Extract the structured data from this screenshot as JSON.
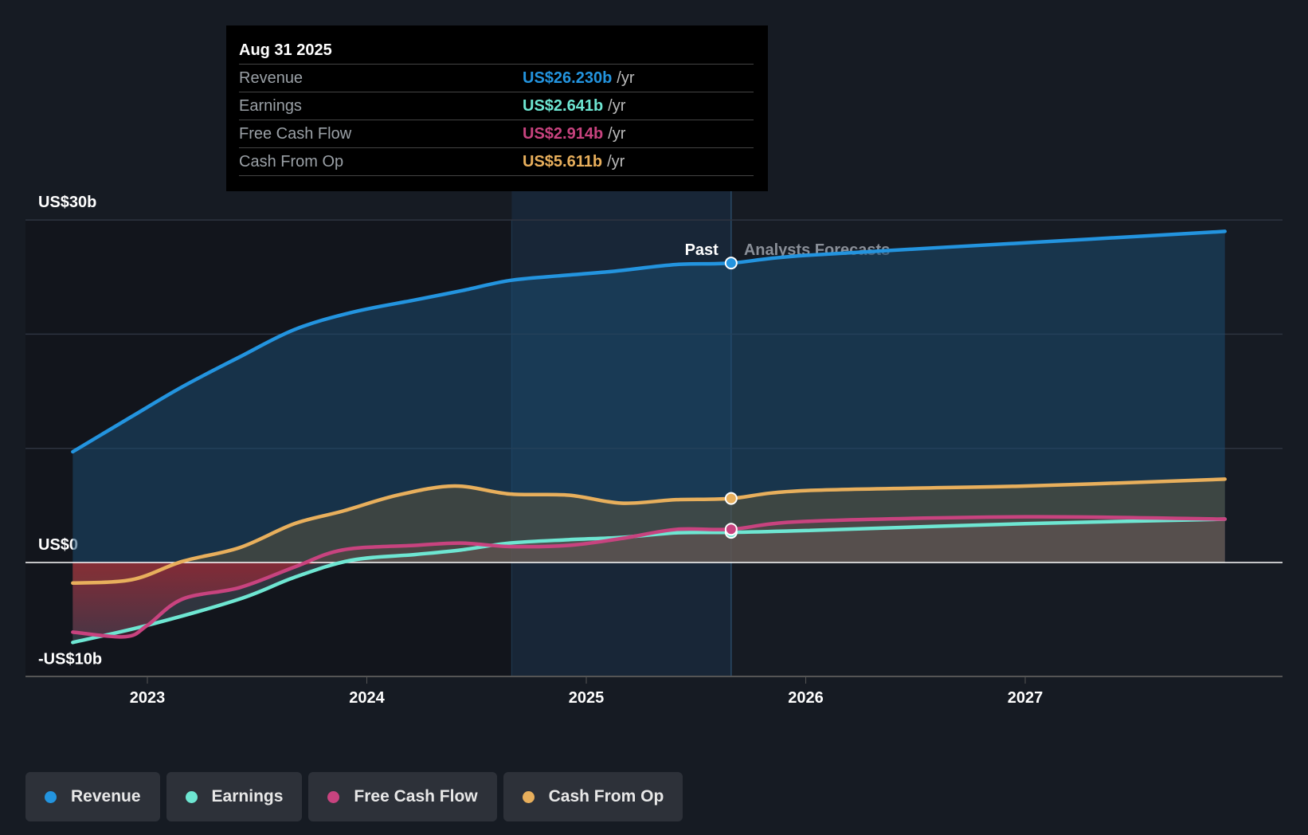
{
  "tooltip": {
    "date": "Aug 31 2025",
    "rows": [
      {
        "label": "Revenue",
        "value": "US$26.230b",
        "unit": "/yr",
        "color": "#2394df"
      },
      {
        "label": "Earnings",
        "value": "US$2.641b",
        "unit": "/yr",
        "color": "#6ee6d2"
      },
      {
        "label": "Free Cash Flow",
        "value": "US$2.914b",
        "unit": "/yr",
        "color": "#c8437f"
      },
      {
        "label": "Cash From Op",
        "value": "US$5.611b",
        "unit": "/yr",
        "color": "#e8af5c"
      }
    ]
  },
  "chart_data": {
    "type": "line",
    "title": "",
    "xlabel": "",
    "ylabel": "",
    "ylim": [
      -10,
      30
    ],
    "xlim": [
      2022.5,
      2027.91
    ],
    "y_ticks": [
      {
        "value": 30,
        "label": "US$30b"
      },
      {
        "value": 0,
        "label": "US$0"
      },
      {
        "value": -10,
        "label": "-US$10b"
      }
    ],
    "x_ticks": [
      {
        "value": 2023,
        "label": "2023"
      },
      {
        "value": 2024,
        "label": "2024"
      },
      {
        "value": 2025,
        "label": "2025"
      },
      {
        "value": 2026,
        "label": "2026"
      },
      {
        "value": 2027,
        "label": "2027"
      }
    ],
    "past_label": "Past",
    "forecast_label": "Analysts Forecasts",
    "past_end": 2025.66,
    "highlight_start": 2024.66,
    "series": [
      {
        "name": "Revenue",
        "color": "#2394df",
        "x": [
          2022.66,
          2022.93,
          2023.16,
          2023.42,
          2023.67,
          2023.93,
          2024.22,
          2024.43,
          2024.65,
          2024.87,
          2025.12,
          2025.41,
          2025.66,
          2026.0,
          2027.0,
          2027.91
        ],
        "y": [
          9.7,
          12.8,
          15.4,
          18.0,
          20.4,
          21.9,
          23.0,
          23.8,
          24.7,
          25.1,
          25.5,
          26.1,
          26.23,
          26.9,
          28.0,
          29.0
        ]
      },
      {
        "name": "Earnings",
        "color": "#6ee6d2",
        "x": [
          2022.66,
          2023.0,
          2023.42,
          2023.67,
          2023.93,
          2024.22,
          2024.43,
          2024.65,
          2024.92,
          2025.16,
          2025.41,
          2025.66,
          2026.0,
          2027.0,
          2027.91
        ],
        "y": [
          -7.0,
          -5.5,
          -3.2,
          -1.3,
          0.2,
          0.7,
          1.1,
          1.7,
          2.0,
          2.2,
          2.6,
          2.641,
          2.8,
          3.4,
          3.8
        ]
      },
      {
        "name": "Free Cash Flow",
        "color": "#c8437f",
        "x": [
          2022.66,
          2022.9,
          2023.0,
          2023.16,
          2023.42,
          2023.67,
          2023.89,
          2024.22,
          2024.43,
          2024.65,
          2024.92,
          2025.16,
          2025.41,
          2025.66,
          2026.0,
          2027.0,
          2027.91
        ],
        "y": [
          -6.1,
          -6.5,
          -5.5,
          -3.2,
          -2.2,
          -0.4,
          1.1,
          1.5,
          1.7,
          1.4,
          1.5,
          2.1,
          2.9,
          2.914,
          3.6,
          4.0,
          3.8
        ]
      },
      {
        "name": "Cash From Op",
        "color": "#e8af5c",
        "x": [
          2022.66,
          2022.93,
          2023.16,
          2023.42,
          2023.67,
          2023.89,
          2024.14,
          2024.4,
          2024.65,
          2024.92,
          2025.16,
          2025.41,
          2025.66,
          2026.0,
          2027.0,
          2027.91
        ],
        "y": [
          -1.8,
          -1.5,
          0.1,
          1.3,
          3.4,
          4.5,
          5.9,
          6.7,
          6.0,
          5.9,
          5.2,
          5.5,
          5.611,
          6.3,
          6.7,
          7.3
        ]
      }
    ]
  },
  "legend": [
    {
      "label": "Revenue",
      "color": "#2394df"
    },
    {
      "label": "Earnings",
      "color": "#6ee6d2"
    },
    {
      "label": "Free Cash Flow",
      "color": "#c8437f"
    },
    {
      "label": "Cash From Op",
      "color": "#e8af5c"
    }
  ]
}
